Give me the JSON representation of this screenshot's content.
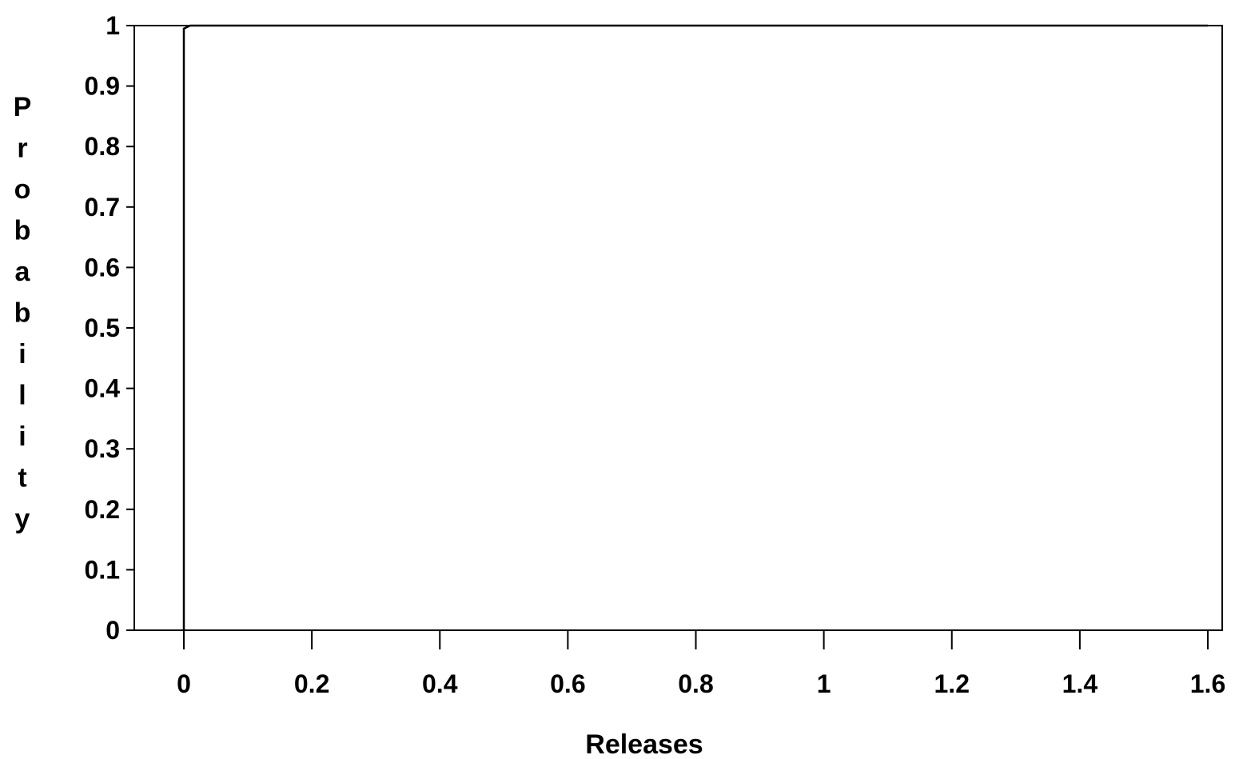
{
  "chart_data": {
    "type": "line",
    "title": "",
    "xlabel": "Releases",
    "ylabel": "Probability",
    "xlim": [
      0,
      1.6
    ],
    "ylim": [
      0,
      1
    ],
    "x_ticks": [
      "0",
      "0.2",
      "0.4",
      "0.6",
      "0.8",
      "1",
      "1.2",
      "1.4",
      "1.6"
    ],
    "y_ticks": [
      "0",
      "0.1",
      "0.2",
      "0.3",
      "0.4",
      "0.5",
      "0.6",
      "0.7",
      "0.8",
      "0.9",
      "1"
    ],
    "grid": false,
    "legend": "none",
    "series": [
      {
        "x": [
          0,
          0,
          0.01,
          1.6
        ],
        "y": [
          0,
          0.995,
          1,
          1
        ],
        "color": "#000000"
      }
    ]
  }
}
